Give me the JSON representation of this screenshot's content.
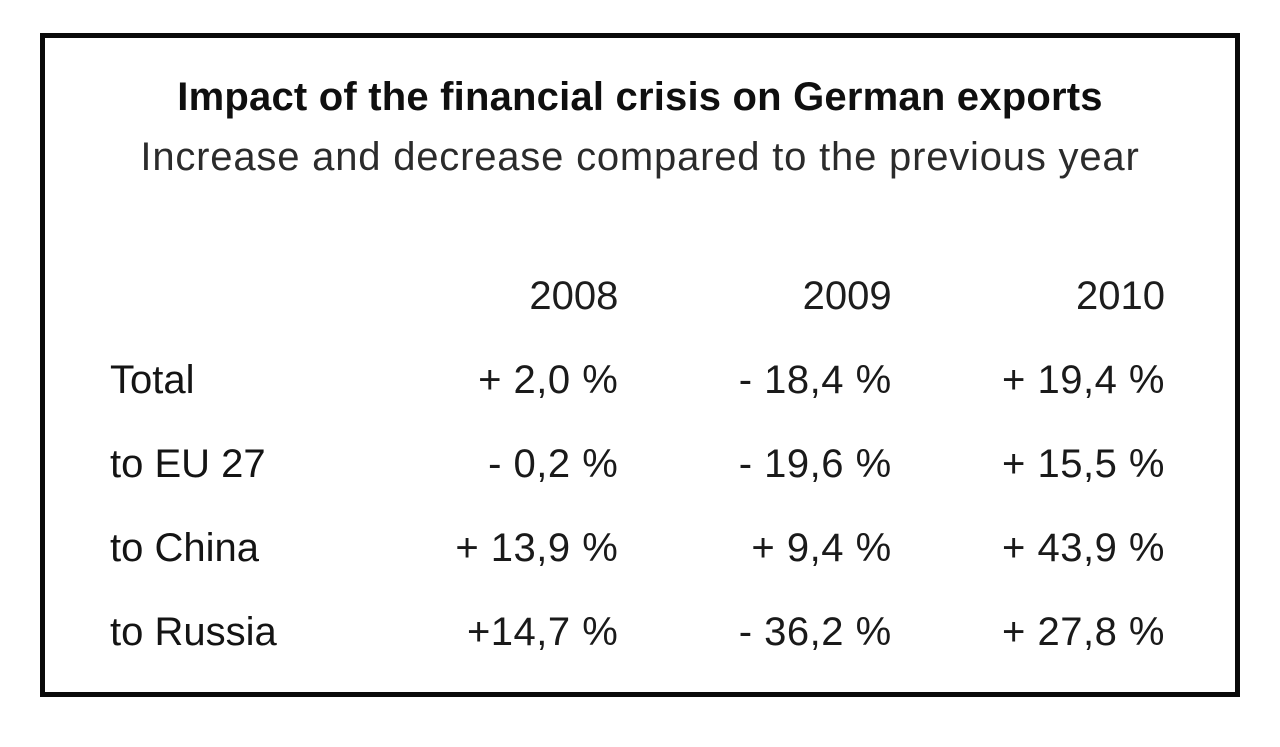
{
  "page": {
    "background": "#ffffff",
    "frame_border_color": "#0a0a0a",
    "text_color": "#161616"
  },
  "chart_data": {
    "type": "table",
    "title": "Impact of the financial crisis on German exports",
    "subtitle": "Increase and decrease compared to the previous year",
    "columns": [
      "2008",
      "2009",
      "2010"
    ],
    "rows": [
      {
        "label": "Total",
        "values": [
          "+ 2,0 %",
          "- 18,4 %",
          "+ 19,4 %"
        ]
      },
      {
        "label": "to EU 27",
        "values": [
          "- 0,2 %",
          "- 19,6 %",
          "+ 15,5 %"
        ]
      },
      {
        "label": "to China",
        "values": [
          "+ 13,9 %",
          "+ 9,4 %",
          "+ 43,9 %"
        ]
      },
      {
        "label": "to Russia",
        "values": [
          "+14,7 %",
          "- 36,2 %",
          "+ 27,8 %"
        ]
      }
    ],
    "layout": {
      "value_alignment": "right",
      "label_alignment": "left",
      "decimal_separator": ","
    }
  }
}
